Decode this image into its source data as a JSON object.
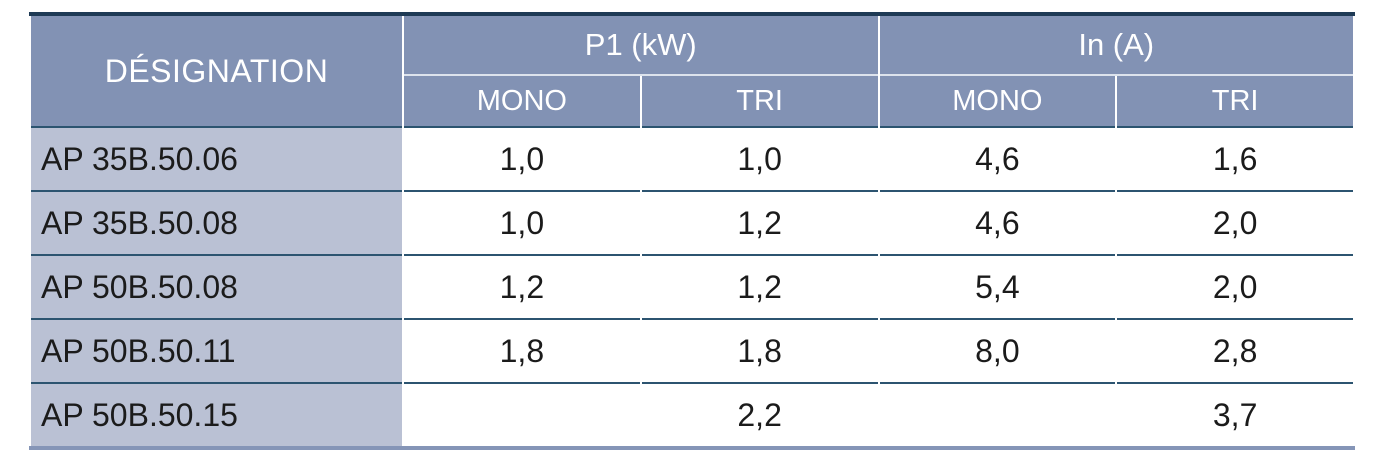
{
  "table": {
    "designation_header": "DÉSIGNATION",
    "groups": [
      {
        "label": "P1 (kW)",
        "sub": [
          "MONO",
          "TRI"
        ]
      },
      {
        "label": "In (A)",
        "sub": [
          "MONO",
          "TRI"
        ]
      }
    ],
    "rows": [
      {
        "designation": "AP 35B.50.06",
        "p1_mono": "1,0",
        "p1_tri": "1,0",
        "in_mono": "4,6",
        "in_tri": "1,6"
      },
      {
        "designation": "AP 35B.50.08",
        "p1_mono": "1,0",
        "p1_tri": "1,2",
        "in_mono": "4,6",
        "in_tri": "2,0"
      },
      {
        "designation": "AP 50B.50.08",
        "p1_mono": "1,2",
        "p1_tri": "1,2",
        "in_mono": "5,4",
        "in_tri": "2,0"
      },
      {
        "designation": "AP 50B.50.11",
        "p1_mono": "1,8",
        "p1_tri": "1,8",
        "in_mono": "8,0",
        "in_tri": "2,8"
      },
      {
        "designation": "AP 50B.50.15",
        "p1_mono": "",
        "p1_tri": "2,2",
        "in_mono": "",
        "in_tri": "3,7"
      }
    ],
    "colors": {
      "header_bg": "#8292b4",
      "designation_column_bg": "#bac1d4",
      "top_border": "#1e3a55",
      "bottom_border": "#8595b7",
      "row_separator": "#2c5470",
      "header_inner_separator": "#dde3ed",
      "header_text": "#ffffff",
      "body_text": "#1b1b1b"
    }
  }
}
